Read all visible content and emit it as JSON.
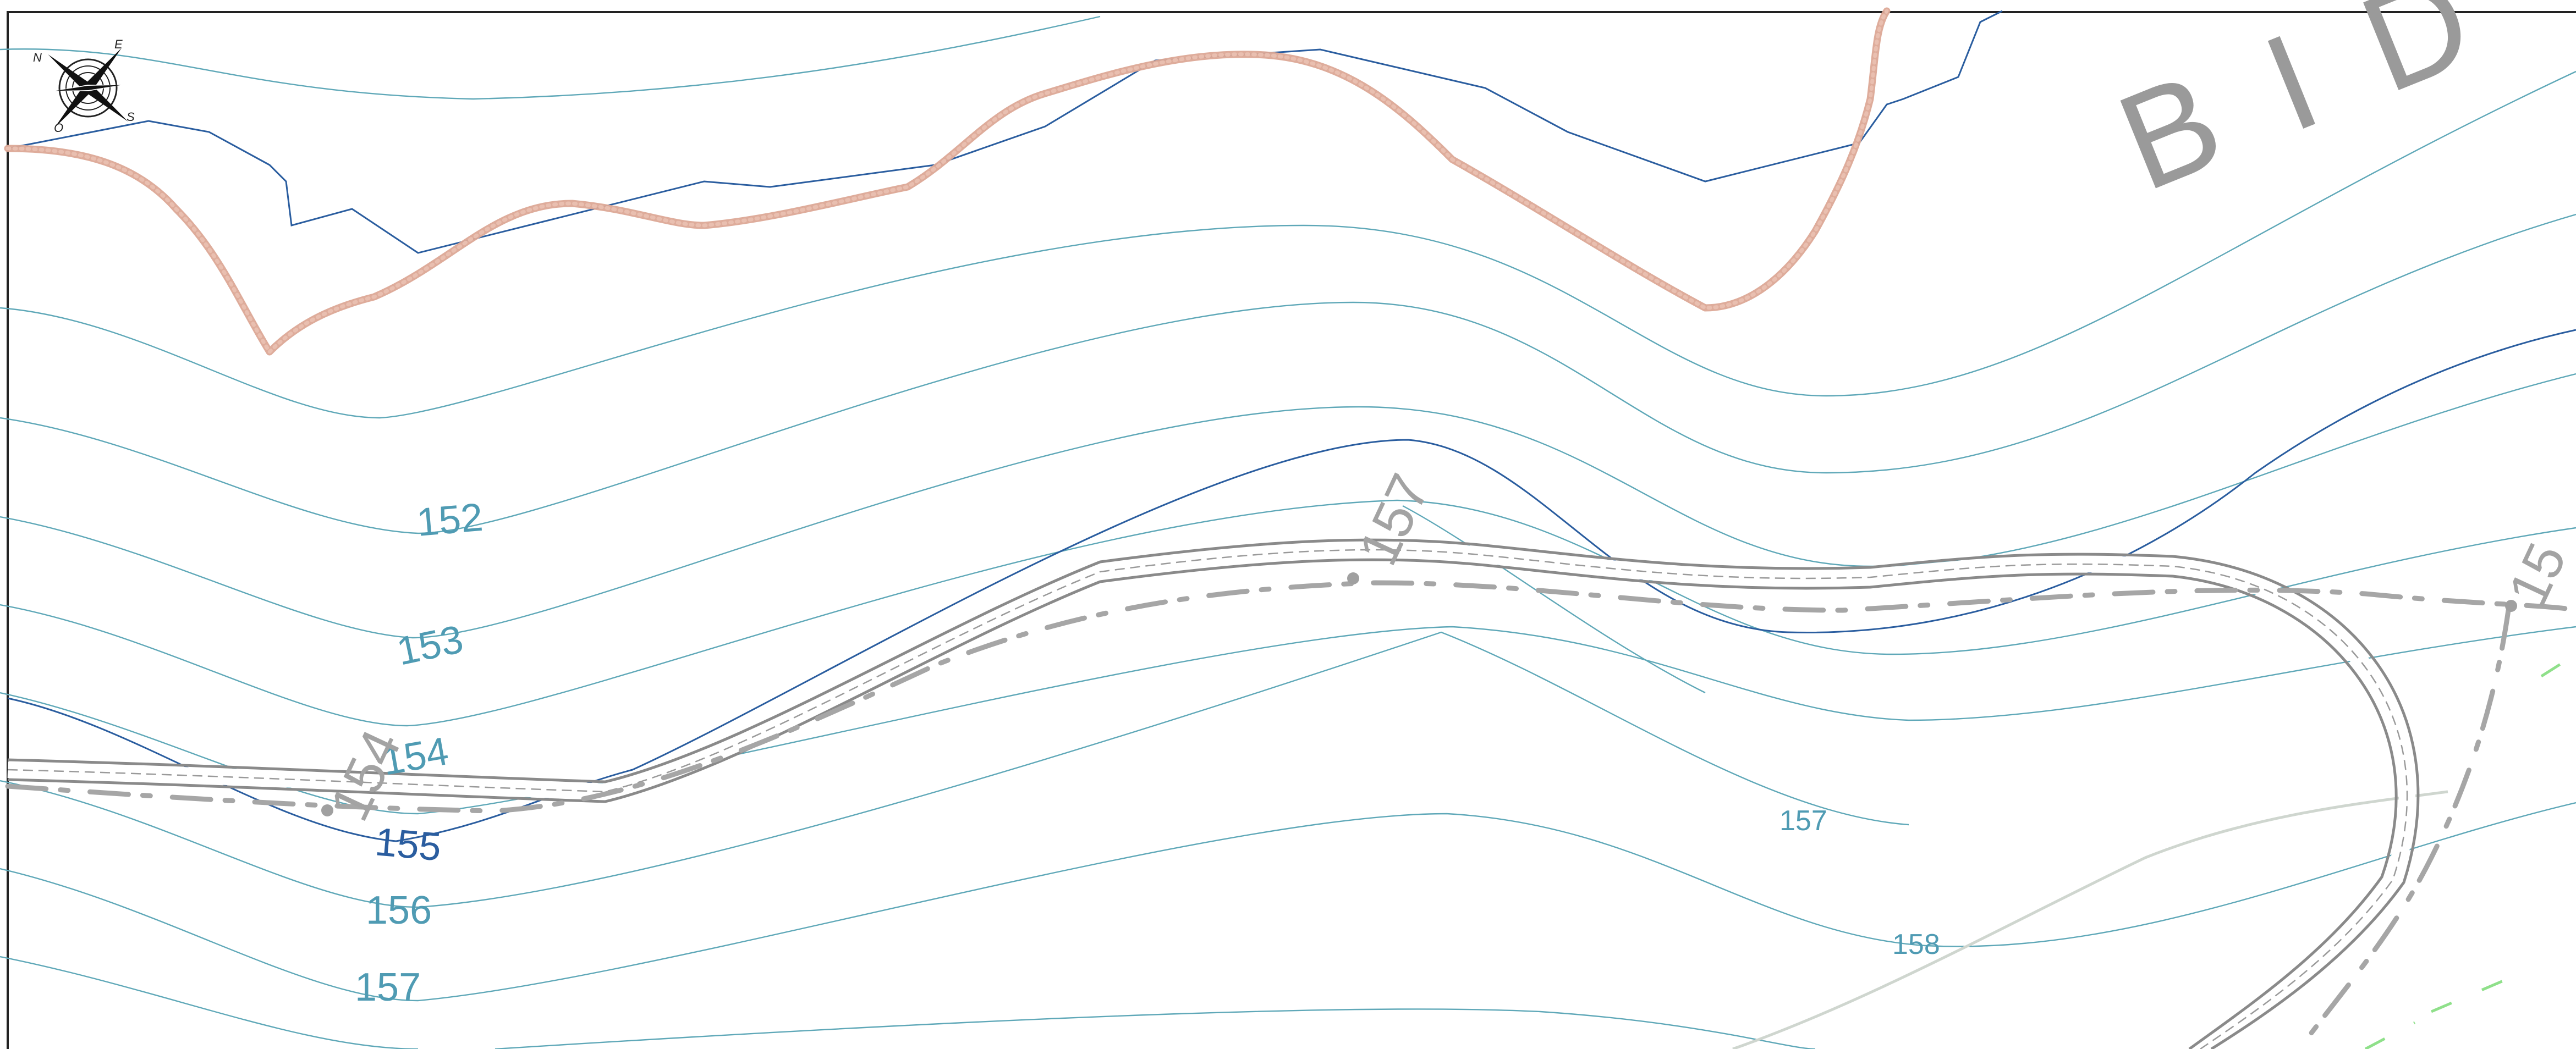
{
  "map": {
    "contour_labels": [
      "152",
      "153",
      "154",
      "155",
      "156",
      "157",
      "157",
      "158"
    ],
    "road_labels": [
      "157",
      "154",
      "15"
    ],
    "area_label": "BID",
    "compass": {
      "n": "N",
      "e": "E",
      "s": "S",
      "o": "O"
    },
    "colors": {
      "contour": "#5fa8b8",
      "contour_major": "#2a5d9f",
      "profile": "#dca896",
      "road": "#8a8a8a",
      "vegetation": "#8fe08a"
    }
  }
}
